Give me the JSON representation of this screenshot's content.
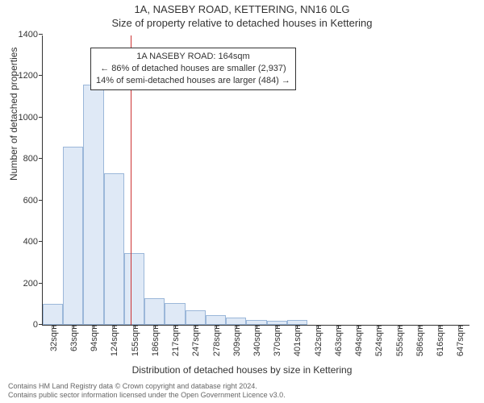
{
  "title": "1A, NASEBY ROAD, KETTERING, NN16 0LG",
  "subtitle": "Size of property relative to detached houses in Kettering",
  "y_axis_label": "Number of detached properties",
  "x_axis_label": "Distribution of detached houses by size in Kettering",
  "chart": {
    "type": "histogram",
    "background_color": "#ffffff",
    "bar_fill": "#dfe9f6",
    "bar_border": "#9bb7d9",
    "axis_color": "#333333",
    "ref_line_color": "#cc3333",
    "ylim_max": 1400,
    "ytick_step": 200,
    "yticks": [
      0,
      200,
      400,
      600,
      800,
      1000,
      1200,
      1400
    ],
    "x_labels": [
      "32sqm",
      "63sqm",
      "94sqm",
      "124sqm",
      "155sqm",
      "186sqm",
      "217sqm",
      "247sqm",
      "278sqm",
      "309sqm",
      "340sqm",
      "370sqm",
      "401sqm",
      "432sqm",
      "463sqm",
      "494sqm",
      "524sqm",
      "555sqm",
      "586sqm",
      "616sqm",
      "647sqm"
    ],
    "values": [
      100,
      860,
      1160,
      730,
      345,
      130,
      105,
      70,
      45,
      35,
      25,
      18,
      22,
      0,
      0,
      0,
      0,
      0,
      0,
      0,
      0
    ],
    "ref_line_index": 4.3,
    "label_fontsize": 11,
    "axis_label_fontsize": 12
  },
  "annotation": {
    "line1": "1A NASEBY ROAD: 164sqm",
    "line2": "← 86% of detached houses are smaller (2,937)",
    "line3": "14% of semi-detached houses are larger (484) →"
  },
  "footer": {
    "line1": "Contains HM Land Registry data © Crown copyright and database right 2024.",
    "line2": "Contains public sector information licensed under the Open Government Licence v3.0."
  }
}
